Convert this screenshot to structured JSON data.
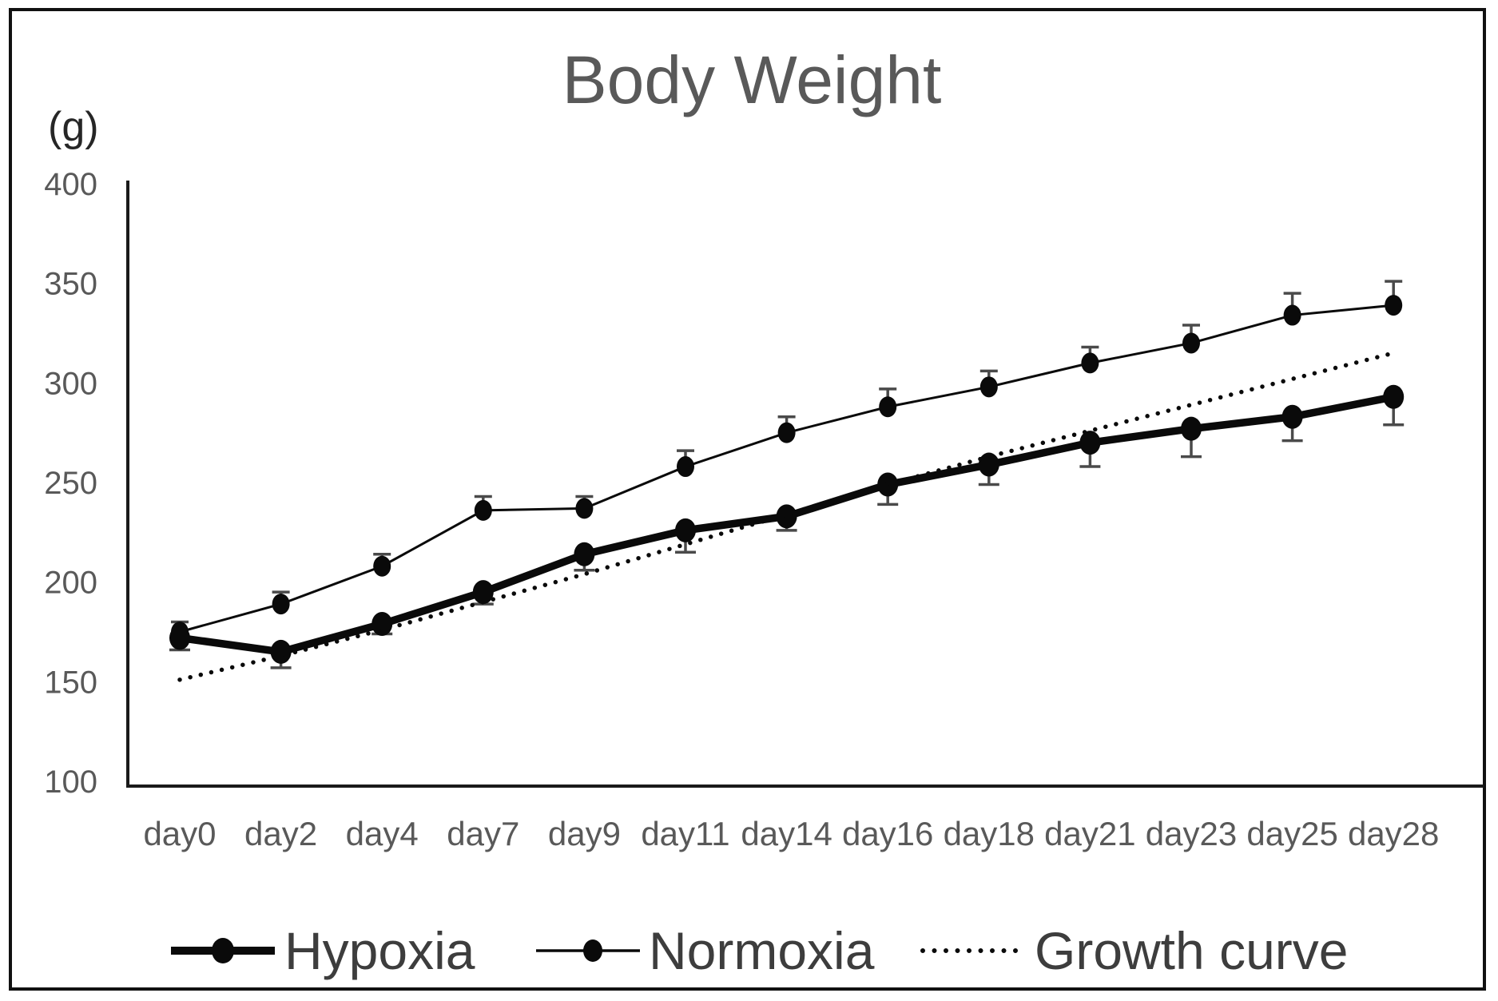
{
  "figure": {
    "title": "Body Weight",
    "y_unit_label": "(g)",
    "colors": {
      "border": "#111111",
      "axis": "#1a1a1a",
      "series": "#0a0a0a",
      "error_bar": "#4a4a4a",
      "tick_label": "#595959",
      "title": "#595959",
      "legend_text": "#3d3d3d",
      "background": "#ffffff"
    }
  },
  "chart_data": {
    "type": "line",
    "title": "Body Weight",
    "xlabel": "",
    "ylabel": "(g)",
    "ylim": [
      100,
      400
    ],
    "y_ticks": [
      400,
      350,
      300,
      250,
      200,
      150,
      100
    ],
    "grid": false,
    "legend_position": "bottom",
    "categories": [
      "day0",
      "day2",
      "day4",
      "day7",
      "day9",
      "day11",
      "day14",
      "day16",
      "day18",
      "day21",
      "day23",
      "day25",
      "day28"
    ],
    "series": [
      {
        "name": "Hypoxia",
        "style": "thick-solid-line-with-markers",
        "error_direction": "down",
        "values": [
          172,
          165,
          179,
          195,
          214,
          226,
          233,
          249,
          259,
          270,
          277,
          283,
          293
        ],
        "errors": [
          6,
          8,
          5,
          6,
          8,
          11,
          7,
          10,
          10,
          12,
          14,
          12,
          14
        ]
      },
      {
        "name": "Normoxia",
        "style": "thin-solid-line-with-markers",
        "error_direction": "up",
        "values": [
          175,
          189,
          208,
          236,
          237,
          258,
          275,
          288,
          298,
          310,
          320,
          334,
          339
        ],
        "errors": [
          5,
          6,
          6,
          7,
          6,
          8,
          8,
          9,
          8,
          8,
          9,
          11,
          12
        ]
      },
      {
        "name": "Growth curve",
        "style": "dotted-line",
        "error_direction": "none",
        "values": [
          151,
          163,
          176,
          190,
          204,
          219,
          234,
          249,
          263,
          276,
          289,
          302,
          315
        ],
        "errors": []
      }
    ]
  }
}
